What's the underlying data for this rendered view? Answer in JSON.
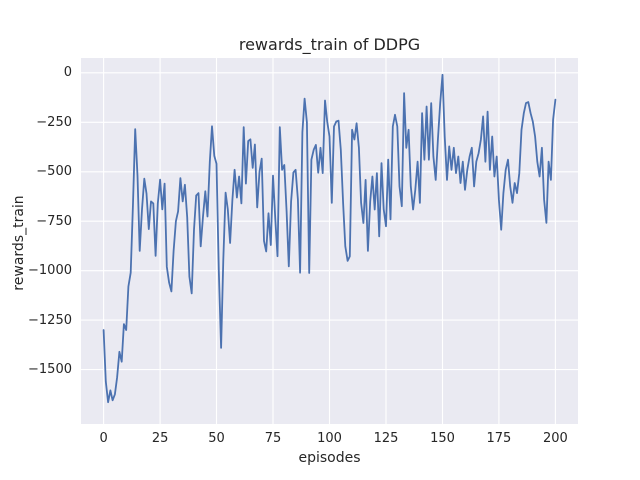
{
  "chart_data": {
    "type": "line",
    "title": "rewards_train of DDPG",
    "xlabel": "episodes",
    "ylabel": "rewards_train",
    "xlim": [
      -10,
      210
    ],
    "ylim": [
      -1775,
      75
    ],
    "xticks": [
      0,
      25,
      50,
      75,
      100,
      125,
      150,
      175,
      200
    ],
    "yticks": [
      0,
      -250,
      -500,
      -750,
      -1000,
      -1250,
      -1500
    ],
    "grid": true,
    "legend": false,
    "style": "seaborn-darkgrid",
    "line_color": "#4c72b0",
    "axes_background": "#eaeaf2",
    "grid_color": "#ffffff",
    "text_color": "#262626",
    "series": [
      {
        "name": "rewards_train",
        "x_start": 0,
        "x_step": 1,
        "n_points": 201,
        "values": [
          -1300,
          -1560,
          -1665,
          -1605,
          -1655,
          -1625,
          -1540,
          -1410,
          -1460,
          -1270,
          -1300,
          -1080,
          -1010,
          -660,
          -285,
          -520,
          -900,
          -690,
          -535,
          -610,
          -790,
          -650,
          -660,
          -925,
          -660,
          -540,
          -690,
          -560,
          -980,
          -1060,
          -1105,
          -900,
          -750,
          -700,
          -532,
          -650,
          -566,
          -730,
          -1030,
          -1115,
          -793,
          -620,
          -608,
          -877,
          -726,
          -599,
          -726,
          -450,
          -270,
          -420,
          -460,
          -1000,
          -1390,
          -944,
          -606,
          -690,
          -860,
          -641,
          -490,
          -630,
          -524,
          -660,
          -275,
          -560,
          -345,
          -336,
          -480,
          -362,
          -680,
          -500,
          -434,
          -850,
          -903,
          -710,
          -870,
          -520,
          -740,
          -927,
          -275,
          -490,
          -466,
          -700,
          -978,
          -650,
          -504,
          -490,
          -640,
          -1010,
          -300,
          -130,
          -250,
          -1012,
          -439,
          -389,
          -364,
          -505,
          -379,
          -507,
          -140,
          -246,
          -322,
          -657,
          -271,
          -246,
          -242,
          -389,
          -657,
          -877,
          -950,
          -928,
          -288,
          -337,
          -255,
          -379,
          -657,
          -759,
          -541,
          -900,
          -650,
          -524,
          -691,
          -507,
          -827,
          -456,
          -690,
          -775,
          -439,
          -741,
          -271,
          -212,
          -271,
          -574,
          -674,
          -103,
          -379,
          -288,
          -574,
          -691,
          -591,
          -449,
          -657,
          -204,
          -439,
          -170,
          -439,
          -153,
          -423,
          -541,
          -337,
          -153,
          -10,
          -322,
          -541,
          -372,
          -490,
          -379,
          -507,
          -423,
          -557,
          -449,
          -591,
          -490,
          -423,
          -379,
          -574,
          -449,
          -406,
          -337,
          -220,
          -449,
          -196,
          -490,
          -322,
          -524,
          -423,
          -641,
          -793,
          -608,
          -490,
          -439,
          -574,
          -657,
          -557,
          -608,
          -507,
          -288,
          -204,
          -153,
          -148,
          -204,
          -246,
          -322,
          -449,
          -524,
          -379,
          -641,
          -758,
          -449,
          -541,
          -237,
          -136
        ]
      }
    ]
  }
}
